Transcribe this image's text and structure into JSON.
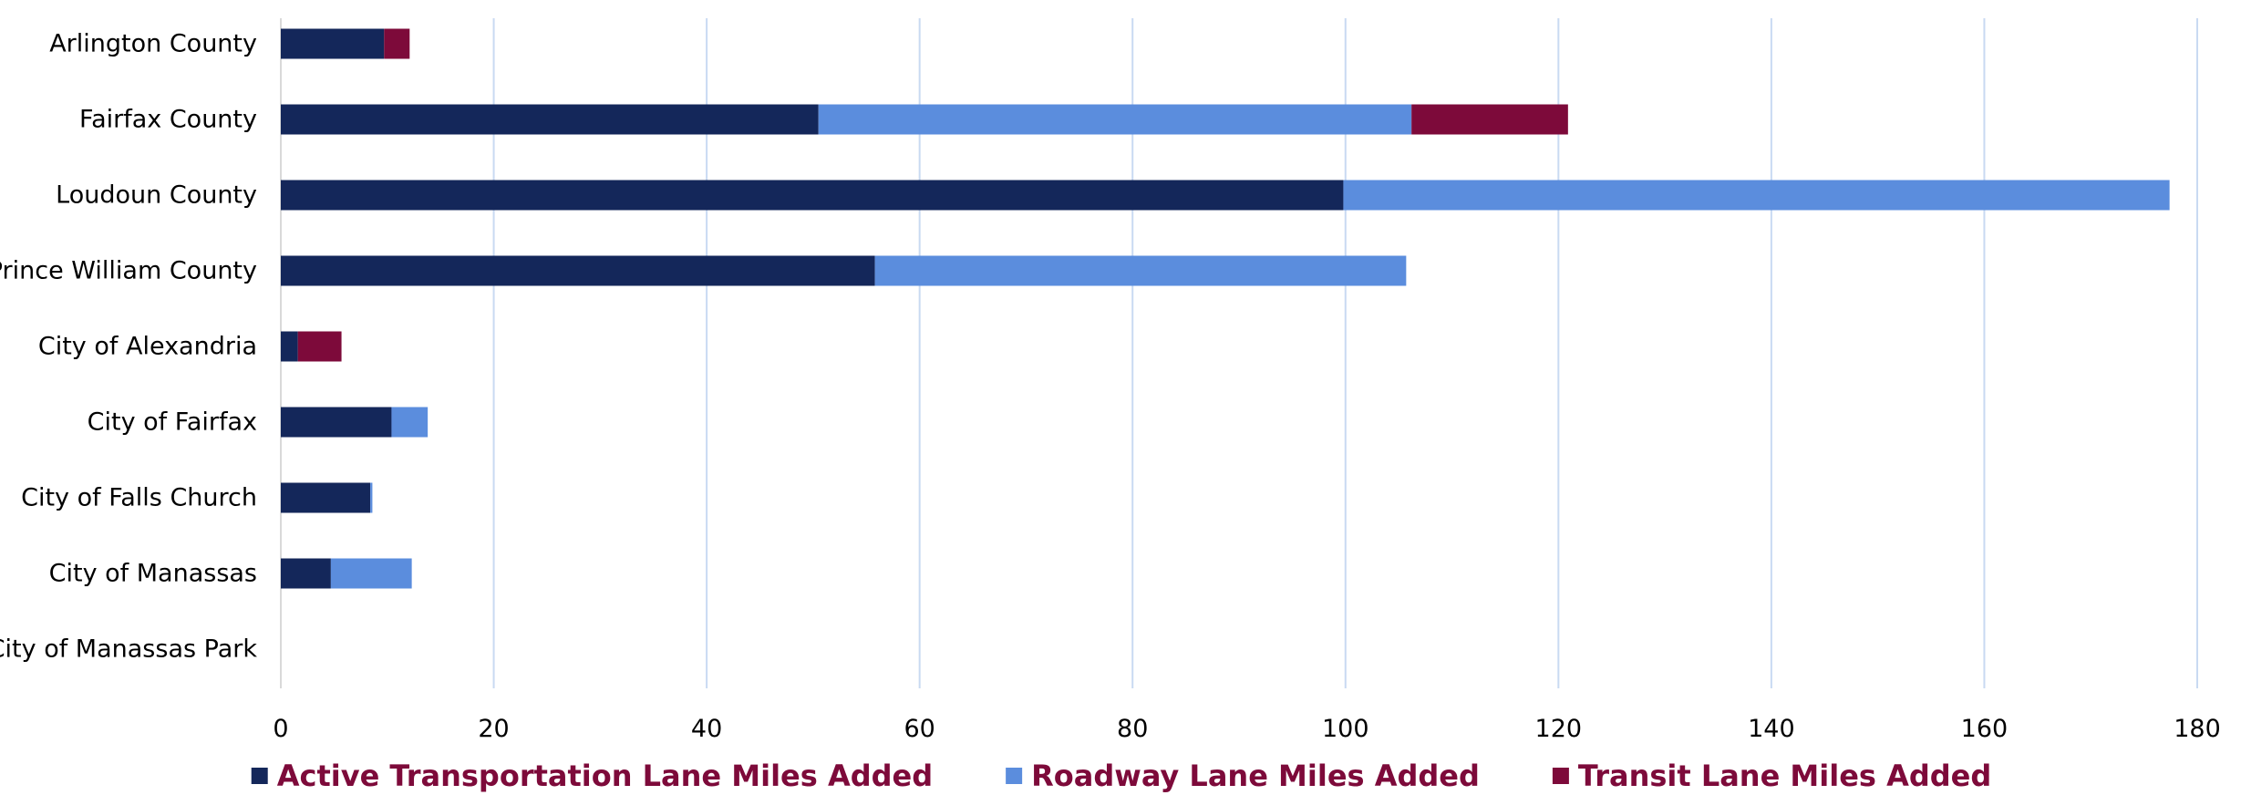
{
  "chart_data": {
    "type": "bar",
    "orientation": "horizontal",
    "stacked": true,
    "categories": [
      "Arlington County",
      "Fairfax County",
      "Loudoun County",
      "Prince William County",
      "City of Alexandria",
      "City of Fairfax",
      "City of Falls Church",
      "City of Manassas",
      "City of Manassas Park"
    ],
    "series": [
      {
        "name": "Active Transportation Lane Miles Added",
        "color": "#14275a",
        "values": [
          9.7,
          50.5,
          99.8,
          55.8,
          1.6,
          10.4,
          8.4,
          4.7,
          0
        ]
      },
      {
        "name": "Roadway Lane Miles Added",
        "color": "#5b8ddd",
        "values": [
          0,
          55.7,
          77.6,
          49.9,
          0,
          3.4,
          0.2,
          7.6,
          0
        ]
      },
      {
        "name": "Transit Lane Miles Added",
        "color": "#7d0a3a",
        "values": [
          2.4,
          14.7,
          0,
          0,
          4.1,
          0,
          0,
          0,
          0
        ]
      }
    ],
    "xlim": [
      0,
      180
    ],
    "xticks": [
      "0",
      "20",
      "40",
      "60",
      "80",
      "100",
      "120",
      "140",
      "160",
      "180"
    ],
    "grid": "vertical",
    "grid_color": "#c9daf2",
    "legend_position": "bottom",
    "legend_text_color": "#7d0a3a",
    "title": "",
    "xlabel": "",
    "ylabel": ""
  }
}
